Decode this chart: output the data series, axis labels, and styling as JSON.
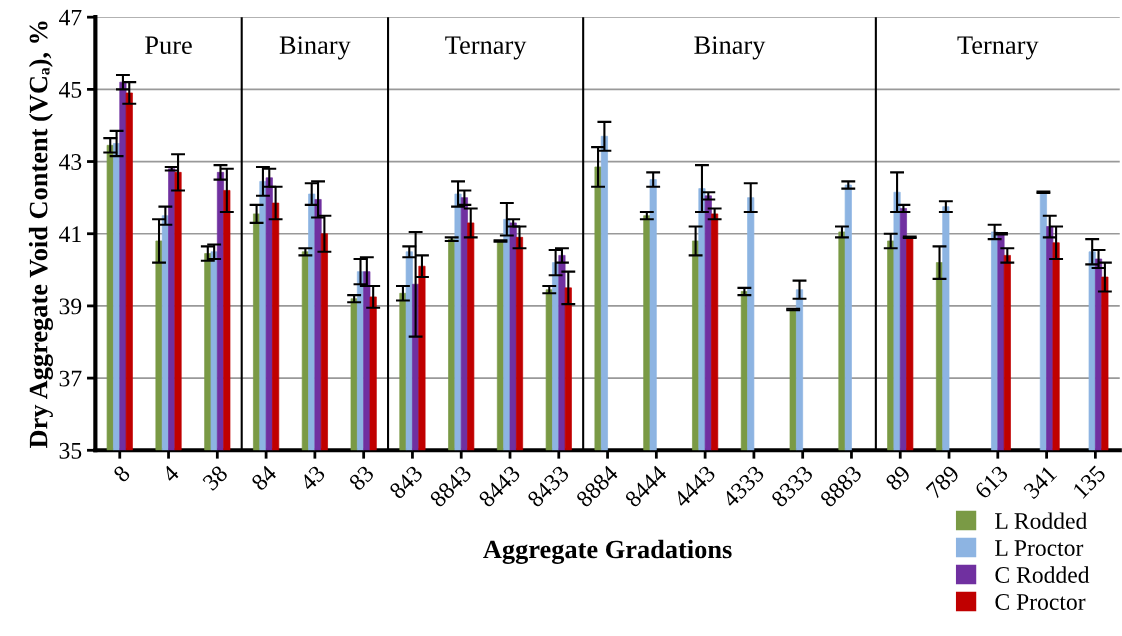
{
  "chart_data": {
    "type": "bar",
    "xlabel": "Aggregate Gradations",
    "ylabel": "Dry Aggregate Void Content (VCₐ), %",
    "categories": [
      "8",
      "4",
      "38",
      "84",
      "43",
      "83",
      "843",
      "8843",
      "8443",
      "8433",
      "8884",
      "8444",
      "4443",
      "4333",
      "8333",
      "8883",
      "89",
      "789",
      "613",
      "341",
      "135"
    ],
    "series": [
      {
        "name": "L Rodded",
        "color": "#7a9a45",
        "values": [
          43.45,
          40.8,
          40.45,
          41.55,
          40.5,
          39.2,
          39.35,
          40.85,
          40.8,
          39.45,
          42.85,
          41.5,
          40.8,
          39.4,
          38.9,
          41.05,
          40.8,
          40.2,
          null,
          null,
          null
        ],
        "errors": [
          0.2,
          0.6,
          0.2,
          0.25,
          0.1,
          0.1,
          0.2,
          0.05,
          0.02,
          0.1,
          0.55,
          0.1,
          0.4,
          0.1,
          0.02,
          0.15,
          0.2,
          0.45,
          null,
          null,
          null
        ]
      },
      {
        "name": "L Proctor",
        "color": "#8db4e2",
        "values": [
          43.5,
          41.5,
          40.5,
          42.45,
          42.1,
          39.95,
          40.5,
          42.1,
          41.4,
          40.2,
          43.7,
          42.5,
          42.25,
          42.0,
          39.45,
          42.35,
          42.15,
          41.75,
          41.05,
          42.15,
          40.5
        ],
        "errors": [
          0.35,
          0.25,
          0.2,
          0.4,
          0.3,
          0.35,
          0.15,
          0.35,
          0.45,
          0.35,
          0.4,
          0.2,
          0.65,
          0.4,
          0.25,
          0.1,
          0.55,
          0.15,
          0.2,
          0.02,
          0.35
        ]
      },
      {
        "name": "C Rodded",
        "color": "#7030a0",
        "values": [
          45.2,
          42.8,
          42.7,
          42.55,
          41.95,
          39.95,
          39.6,
          42.0,
          41.3,
          40.4,
          null,
          null,
          42.05,
          null,
          null,
          null,
          41.7,
          null,
          41.0,
          41.2,
          40.3
        ],
        "errors": [
          0.2,
          0.05,
          0.2,
          0.25,
          0.5,
          0.4,
          1.45,
          0.2,
          0.1,
          0.2,
          null,
          null,
          0.1,
          null,
          null,
          null,
          0.1,
          null,
          0.02,
          0.3,
          0.25
        ]
      },
      {
        "name": "C Proctor",
        "color": "#c00000",
        "values": [
          44.9,
          42.7,
          42.2,
          41.85,
          41.0,
          39.25,
          40.1,
          41.3,
          40.9,
          39.5,
          null,
          null,
          41.55,
          null,
          null,
          null,
          40.9,
          null,
          40.4,
          40.75,
          39.8
        ],
        "errors": [
          0.3,
          0.5,
          0.6,
          0.45,
          0.5,
          0.3,
          0.3,
          0.4,
          0.3,
          0.45,
          null,
          null,
          0.15,
          null,
          null,
          null,
          0.02,
          null,
          0.2,
          0.45,
          0.4
        ]
      }
    ],
    "annotations": [
      "Pure",
      "Binary",
      "Ternary",
      "Binary",
      "Ternary"
    ],
    "ylim": [
      35,
      47
    ],
    "yticks": [
      35,
      37,
      39,
      41,
      43,
      45,
      47
    ],
    "grid": "y",
    "legend": "bottom right"
  }
}
